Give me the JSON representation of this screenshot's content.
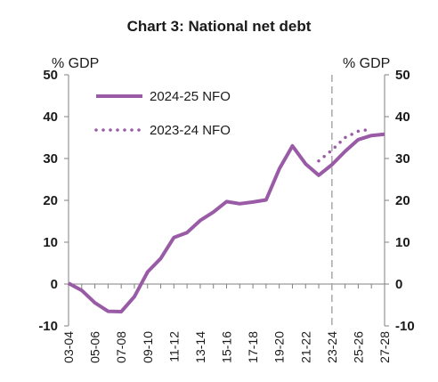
{
  "chart_data": {
    "type": "line",
    "title": "Chart 3: National net debt",
    "ylabel_left": "% GDP",
    "ylabel_right": "% GDP",
    "ylim": [
      -10,
      50
    ],
    "yticks": [
      -10,
      0,
      10,
      20,
      30,
      40,
      50
    ],
    "categories": [
      "03-04",
      "04-05",
      "05-06",
      "06-07",
      "07-08",
      "08-09",
      "09-10",
      "10-11",
      "11-12",
      "12-13",
      "13-14",
      "14-15",
      "15-16",
      "16-17",
      "17-18",
      "18-19",
      "19-20",
      "20-21",
      "21-22",
      "22-23",
      "23-24",
      "24-25",
      "25-26",
      "26-27",
      "27-28"
    ],
    "tick_labels": [
      "03-04",
      "05-06",
      "07-08",
      "09-10",
      "11-12",
      "13-14",
      "15-16",
      "17-18",
      "19-20",
      "21-22",
      "23-24",
      "25-26",
      "27-28"
    ],
    "vertical_marker": "23-24",
    "series": [
      {
        "name": "2024-25 NFO",
        "style": "solid",
        "values": [
          0.2,
          -1.5,
          -4.5,
          -6.5,
          -6.6,
          -3.0,
          2.9,
          6.1,
          11.1,
          12.3,
          15.2,
          17.2,
          19.7,
          19.2,
          19.6,
          20.1,
          27.5,
          33.0,
          28.7,
          26.0,
          28.5,
          31.7,
          34.5,
          35.5,
          35.8
        ]
      },
      {
        "name": "2023-24 NFO",
        "style": "dotted",
        "values": [
          null,
          null,
          null,
          null,
          null,
          null,
          null,
          null,
          null,
          null,
          null,
          null,
          null,
          null,
          null,
          null,
          null,
          null,
          null,
          29.4,
          32.0,
          35.0,
          36.5,
          37.0,
          null
        ]
      }
    ],
    "legend_position": "top-left",
    "colors": {
      "line": "#9a5ba6",
      "axis": "#808080",
      "marker": "#a8a8a8"
    }
  }
}
